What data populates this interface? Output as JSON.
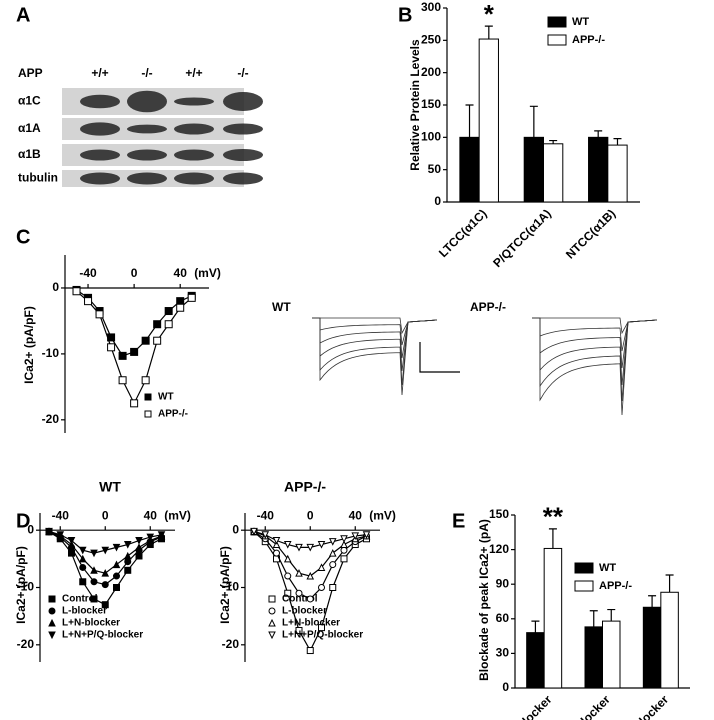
{
  "blot": {
    "panel": "A",
    "row_label": "APP",
    "lanes": [
      "+/+",
      "-/-",
      "+/+",
      "-/-"
    ],
    "rows": [
      "α1C",
      "α1A",
      "α1B",
      "tubulin"
    ]
  },
  "traces": {
    "labels": [
      "WT",
      "APP-/-"
    ]
  },
  "chart_data": [
    {
      "type": "bar",
      "panel": "B",
      "ylabel": "Relative Protein Levels",
      "categories": [
        "LTCC(α1C)",
        "P/QTCC(α1A)",
        "NTCC(α1B)"
      ],
      "series": [
        {
          "name": "WT",
          "color": "#000000",
          "values": [
            100,
            100,
            100
          ],
          "errors": [
            50,
            48,
            10
          ]
        },
        {
          "name": "APP-/-",
          "color": "#ffffff",
          "values": [
            252,
            90,
            88
          ],
          "errors": [
            20,
            5,
            10
          ]
        }
      ],
      "ylim": [
        0,
        300
      ],
      "yticks": [
        0,
        50,
        100,
        150,
        200,
        250,
        300
      ],
      "annotation": "*"
    },
    {
      "type": "line",
      "panel": "C",
      "ylabel": "ICa2+ (pA/pF)",
      "xlabel": "(mV)",
      "x": [
        -50,
        -40,
        -30,
        -20,
        -10,
        0,
        10,
        20,
        30,
        40,
        50
      ],
      "series": [
        {
          "name": "WT",
          "color": "#000000",
          "marker": "square",
          "filled": true,
          "values": [
            -0.3,
            -1.5,
            -3.5,
            -7.5,
            -10.3,
            -9.7,
            -8,
            -5.5,
            -3.5,
            -2,
            -1.2
          ]
        },
        {
          "name": "APP-/-",
          "color": "#000000",
          "marker": "square",
          "filled": false,
          "values": [
            -0.5,
            -2,
            -4,
            -9,
            -14,
            -17.5,
            -14,
            -8,
            -5.5,
            -3,
            -1.5
          ]
        }
      ],
      "xlim": [
        -60,
        65
      ],
      "xticks": [
        -40,
        0,
        40
      ],
      "ylim": [
        -22,
        5
      ],
      "yticks": [
        -20,
        -10,
        0
      ]
    },
    {
      "type": "line",
      "panel": "D",
      "title": "WT",
      "ylabel": "ICa2+ (pA/pF)",
      "xlabel": "(mV)",
      "x": [
        -50,
        -40,
        -30,
        -20,
        -10,
        0,
        10,
        20,
        30,
        40,
        50
      ],
      "series": [
        {
          "name": "Control",
          "color": "#000000",
          "marker": "square",
          "filled": true,
          "values": [
            -0.3,
            -1.5,
            -4,
            -9,
            -12,
            -13,
            -10,
            -7,
            -4.5,
            -2.5,
            -1.5
          ]
        },
        {
          "name": "L-blocker",
          "color": "#000000",
          "marker": "circle",
          "filled": true,
          "values": [
            -0.3,
            -1.2,
            -3,
            -6.5,
            -9,
            -9.5,
            -8,
            -5.5,
            -3.5,
            -2,
            -1.2
          ]
        },
        {
          "name": "L+N-blocker",
          "color": "#000000",
          "marker": "triangle-up",
          "filled": true,
          "values": [
            -0.2,
            -1,
            -2.5,
            -5,
            -7,
            -7.5,
            -6,
            -4.5,
            -3,
            -1.8,
            -1
          ]
        },
        {
          "name": "L+N+P/Q-blocker",
          "color": "#000000",
          "marker": "triangle-down",
          "filled": true,
          "values": [
            -0.2,
            -0.8,
            -1.8,
            -3.5,
            -4,
            -3.5,
            -3,
            -2.5,
            -1.8,
            -1.2,
            -0.8
          ]
        }
      ],
      "xlim": [
        -58,
        62
      ],
      "xticks": [
        -40,
        0,
        40
      ],
      "ylim": [
        -23,
        3
      ],
      "yticks": [
        -20,
        -10,
        0
      ]
    },
    {
      "type": "line",
      "title": "APP-/-",
      "ylabel": "ICa2+ (pA/pF)",
      "xlabel": "(mV)",
      "x": [
        -50,
        -40,
        -30,
        -20,
        -10,
        0,
        10,
        20,
        30,
        40,
        50
      ],
      "series": [
        {
          "name": "Control",
          "color": "#000000",
          "marker": "square",
          "filled": false,
          "values": [
            -0.3,
            -2,
            -5,
            -11,
            -17.5,
            -21,
            -17,
            -10,
            -5,
            -2.5,
            -1.5
          ]
        },
        {
          "name": "L-blocker",
          "color": "#000000",
          "marker": "circle",
          "filled": false,
          "values": [
            -0.3,
            -1.5,
            -4,
            -8,
            -11,
            -12,
            -10,
            -6,
            -3.5,
            -2,
            -1
          ]
        },
        {
          "name": "L+N-blocker",
          "color": "#000000",
          "marker": "triangle-up",
          "filled": false,
          "values": [
            -0.2,
            -1,
            -2.5,
            -5,
            -7.5,
            -8,
            -6.5,
            -4,
            -2.5,
            -1.5,
            -1
          ]
        },
        {
          "name": "L+N+P/Q-blocker",
          "color": "#000000",
          "marker": "triangle-down",
          "filled": false,
          "values": [
            -0.2,
            -0.8,
            -1.8,
            -2.5,
            -3,
            -3,
            -2.5,
            -2,
            -1.5,
            -1,
            -0.8
          ]
        }
      ],
      "xlim": [
        -58,
        62
      ],
      "xticks": [
        -40,
        0,
        40
      ],
      "ylim": [
        -23,
        3
      ],
      "yticks": [
        -20,
        -10,
        0
      ]
    },
    {
      "type": "bar",
      "panel": "E",
      "ylabel": "Blockade of peak ICa2+ (pA)",
      "categories": [
        "L-blocker",
        "N-blocker",
        "P/Q-blocker"
      ],
      "series": [
        {
          "name": "WT",
          "color": "#000000",
          "values": [
            48,
            53,
            70
          ],
          "errors": [
            10,
            14,
            10
          ]
        },
        {
          "name": "APP-/-",
          "color": "#ffffff",
          "values": [
            121,
            58,
            83
          ],
          "errors": [
            17,
            10,
            15
          ]
        }
      ],
      "ylim": [
        0,
        150
      ],
      "yticks": [
        0,
        30,
        60,
        90,
        120,
        150
      ],
      "annotation": "**"
    }
  ]
}
